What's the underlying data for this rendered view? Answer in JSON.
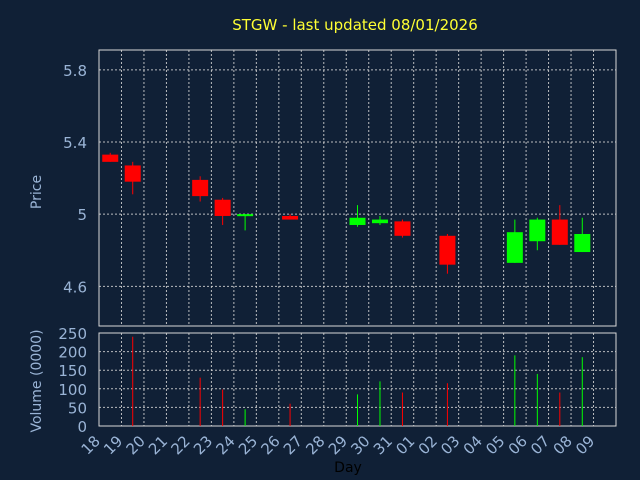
{
  "chart_data": {
    "type": "candlestick",
    "title": "STGW - last updated 08/01/2026",
    "xlabel": "Day",
    "price_panel": {
      "ylabel": "Price",
      "ylim": [
        4.38,
        5.91
      ],
      "yticks": [
        4.6,
        5,
        5.4,
        5.8
      ],
      "ytick_labels": [
        "4.6",
        "5",
        "5.4",
        "5.8"
      ]
    },
    "volume_panel": {
      "ylabel": "Volume (0000)",
      "ylim": [
        0,
        250
      ],
      "yticks": [
        0,
        50,
        100,
        150,
        200,
        250
      ],
      "ytick_labels": [
        "0",
        "50",
        "100",
        "150",
        "200",
        "250"
      ]
    },
    "x_tick_labels": [
      "18",
      "19",
      "20",
      "21",
      "22",
      "23",
      "24",
      "25",
      "26",
      "27",
      "28",
      "29",
      "30",
      "31",
      "01",
      "02",
      "03",
      "04",
      "05",
      "06",
      "07",
      "08",
      "09"
    ],
    "colors": {
      "up": "#00ff00",
      "down": "#ff0000",
      "background": "#102036",
      "title": "#ffff33",
      "axis_text": "#9ab4d6"
    },
    "candles": [
      {
        "day": "18",
        "open": 5.33,
        "high": 5.34,
        "low": 5.29,
        "close": 5.29,
        "volume": 0
      },
      {
        "day": "19",
        "open": 5.27,
        "high": 5.29,
        "low": 5.11,
        "close": 5.18,
        "volume": 240
      },
      {
        "day": "22",
        "open": 5.19,
        "high": 5.21,
        "low": 5.07,
        "close": 5.1,
        "volume": 130
      },
      {
        "day": "23",
        "open": 5.08,
        "high": 5.09,
        "low": 4.94,
        "close": 4.99,
        "volume": 98
      },
      {
        "day": "24",
        "open": 4.99,
        "high": 5.0,
        "low": 4.91,
        "close": 5.0,
        "volume": 45
      },
      {
        "day": "26",
        "open": 4.99,
        "high": 5.0,
        "low": 4.97,
        "close": 4.97,
        "volume": 60
      },
      {
        "day": "29",
        "open": 4.94,
        "high": 5.05,
        "low": 4.93,
        "close": 4.98,
        "volume": 85
      },
      {
        "day": "30",
        "open": 4.95,
        "high": 4.99,
        "low": 4.94,
        "close": 4.97,
        "volume": 120
      },
      {
        "day": "31",
        "open": 4.96,
        "high": 4.97,
        "low": 4.87,
        "close": 4.88,
        "volume": 90
      },
      {
        "day": "02",
        "open": 4.88,
        "high": 4.89,
        "low": 4.67,
        "close": 4.72,
        "volume": 115
      },
      {
        "day": "05",
        "open": 4.73,
        "high": 4.97,
        "low": 4.73,
        "close": 4.9,
        "volume": 190
      },
      {
        "day": "06",
        "open": 4.85,
        "high": 4.98,
        "low": 4.8,
        "close": 4.97,
        "volume": 140
      },
      {
        "day": "07",
        "open": 4.97,
        "high": 5.05,
        "low": 4.83,
        "close": 4.83,
        "volume": 90
      },
      {
        "day": "08",
        "open": 4.79,
        "high": 4.98,
        "low": 4.79,
        "close": 4.89,
        "volume": 185
      }
    ]
  }
}
